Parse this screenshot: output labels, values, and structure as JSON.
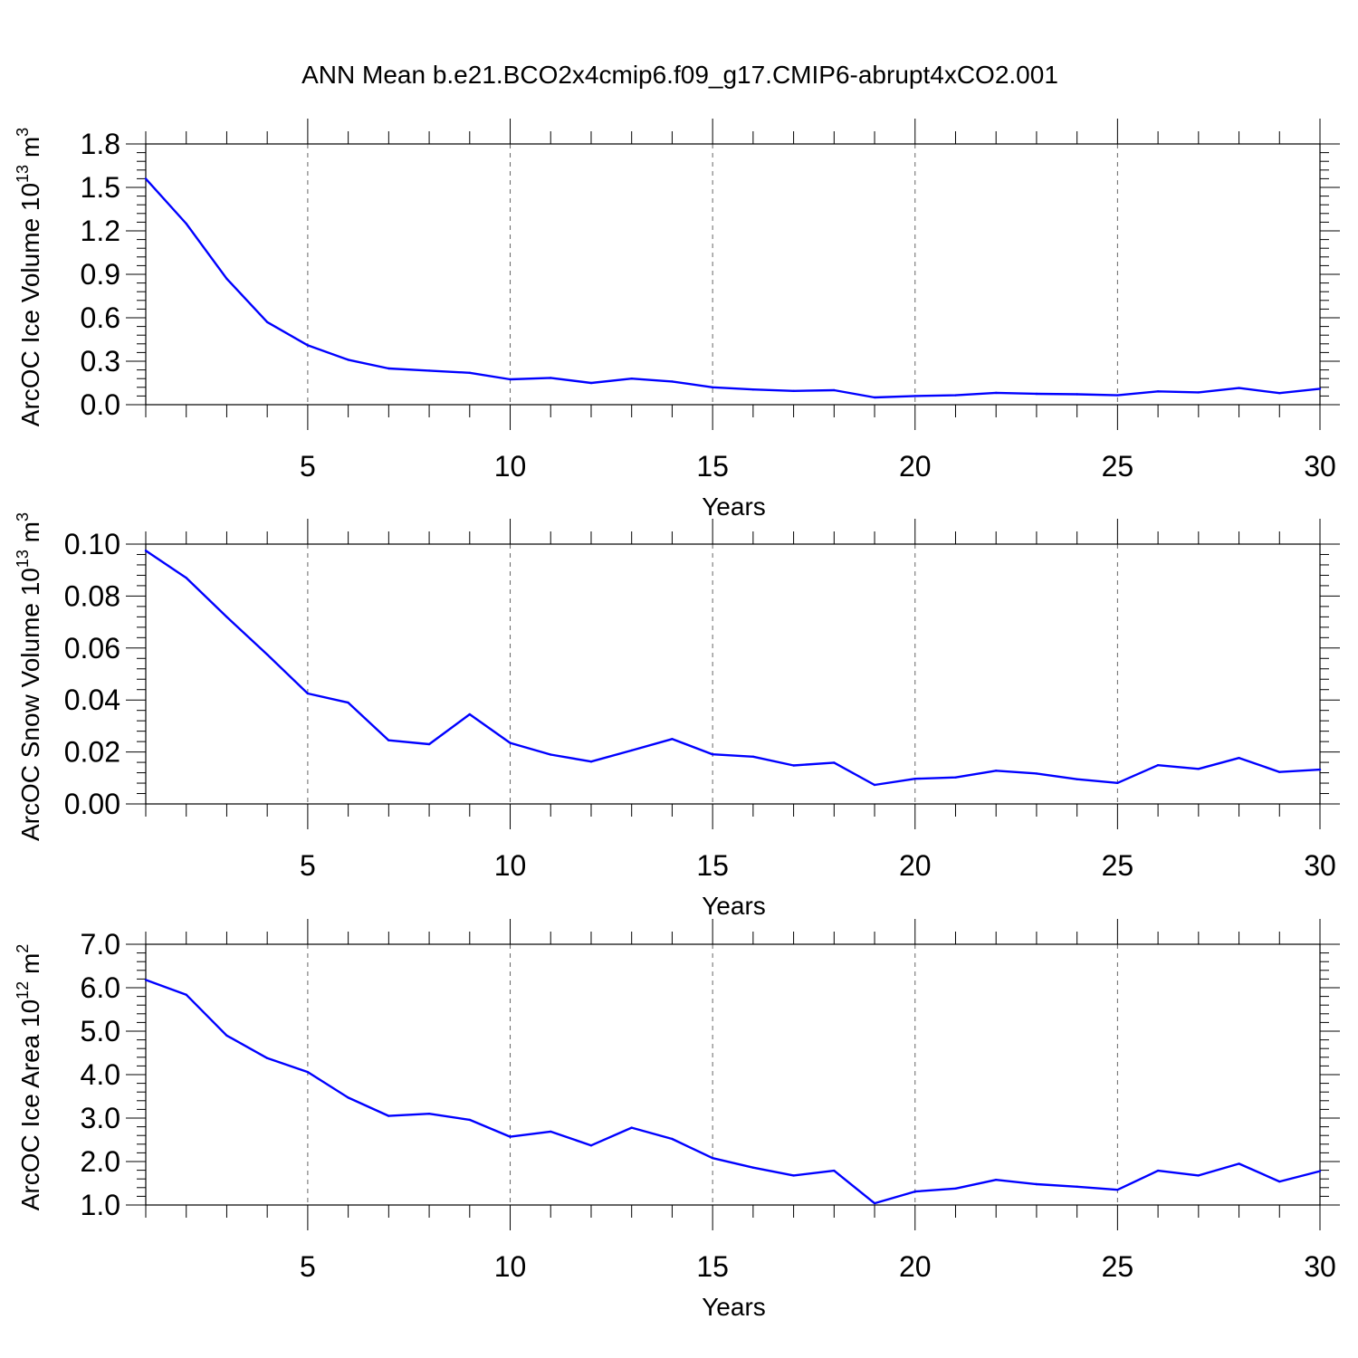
{
  "title": "ANN Mean b.e21.BCO2x4cmip6.f09_g17.CMIP6-abrupt4xCO2.001",
  "colors": {
    "line": "#0000ff",
    "axis": "#000000",
    "grid": "#666666"
  },
  "chart_data": [
    {
      "type": "line",
      "title": "",
      "xlabel": "Years",
      "ylabel": "ArcOC Ice Volume 10",
      "ylabel_exp": "13",
      "ylabel_unit": " m",
      "ylabel_unit_exp": "3",
      "xlim": [
        1,
        30
      ],
      "ylim": [
        0,
        1.8
      ],
      "x_ticks": [
        5,
        10,
        15,
        20,
        25,
        30
      ],
      "y_ticks": [
        0,
        0.3,
        0.6,
        0.9,
        1.2,
        1.5,
        1.8
      ],
      "y_tick_labels": [
        "0.0",
        "0.3",
        "0.6",
        "0.9",
        "1.2",
        "1.5",
        "1.8"
      ],
      "y_minor_step": 0.06,
      "grid": "vertical dashed at major x ticks",
      "x": [
        1,
        2,
        3,
        4,
        5,
        6,
        7,
        8,
        9,
        10,
        11,
        12,
        13,
        14,
        15,
        16,
        17,
        18,
        19,
        20,
        21,
        22,
        23,
        24,
        25,
        26,
        27,
        28,
        29,
        30
      ],
      "y": [
        1.56,
        1.25,
        0.87,
        0.57,
        0.41,
        0.31,
        0.25,
        0.235,
        0.22,
        0.175,
        0.185,
        0.15,
        0.18,
        0.16,
        0.12,
        0.105,
        0.095,
        0.1,
        0.05,
        0.06,
        0.065,
        0.082,
        0.075,
        0.072,
        0.065,
        0.092,
        0.085,
        0.115,
        0.08,
        0.11
      ]
    },
    {
      "type": "line",
      "title": "",
      "xlabel": "Years",
      "ylabel": "ArcOC Snow Volume 10",
      "ylabel_exp": "13",
      "ylabel_unit": " m",
      "ylabel_unit_exp": "3",
      "xlim": [
        1,
        30
      ],
      "ylim": [
        0,
        0.1
      ],
      "x_ticks": [
        5,
        10,
        15,
        20,
        25,
        30
      ],
      "y_ticks": [
        0,
        0.02,
        0.04,
        0.06,
        0.08,
        0.1
      ],
      "y_tick_labels": [
        "0.00",
        "0.02",
        "0.04",
        "0.06",
        "0.08",
        "0.10"
      ],
      "y_minor_step": 0.004,
      "grid": "vertical dashed at major x ticks",
      "x": [
        1,
        2,
        3,
        4,
        5,
        6,
        7,
        8,
        9,
        10,
        11,
        12,
        13,
        14,
        15,
        16,
        17,
        18,
        19,
        20,
        21,
        22,
        23,
        24,
        25,
        26,
        27,
        28,
        29,
        30
      ],
      "y": [
        0.0975,
        0.087,
        0.072,
        0.0575,
        0.0425,
        0.039,
        0.0245,
        0.023,
        0.0345,
        0.0235,
        0.019,
        0.0163,
        0.0206,
        0.025,
        0.0191,
        0.0182,
        0.0148,
        0.0159,
        0.0073,
        0.0097,
        0.0102,
        0.0128,
        0.0117,
        0.0095,
        0.0081,
        0.0149,
        0.0135,
        0.0177,
        0.0123,
        0.0132
      ]
    },
    {
      "type": "line",
      "title": "",
      "xlabel": "Years",
      "ylabel": "ArcOC Ice Area 10",
      "ylabel_exp": "12",
      "ylabel_unit": " m",
      "ylabel_unit_exp": "2",
      "xlim": [
        1,
        30
      ],
      "ylim": [
        1.0,
        7.0
      ],
      "x_ticks": [
        5,
        10,
        15,
        20,
        25,
        30
      ],
      "y_ticks": [
        1,
        2,
        3,
        4,
        5,
        6,
        7
      ],
      "y_tick_labels": [
        "1.0",
        "2.0",
        "3.0",
        "4.0",
        "5.0",
        "6.0",
        "7.0"
      ],
      "y_minor_step": 0.2,
      "grid": "vertical dashed at major x ticks",
      "x": [
        1,
        2,
        3,
        4,
        5,
        6,
        7,
        8,
        9,
        10,
        11,
        12,
        13,
        14,
        15,
        16,
        17,
        18,
        19,
        20,
        21,
        22,
        23,
        24,
        25,
        26,
        27,
        28,
        29,
        30
      ],
      "y": [
        6.18,
        5.84,
        4.9,
        4.38,
        4.06,
        3.47,
        3.05,
        3.1,
        2.96,
        2.57,
        2.69,
        2.37,
        2.78,
        2.52,
        2.08,
        1.86,
        1.68,
        1.79,
        1.04,
        1.31,
        1.38,
        1.58,
        1.48,
        1.42,
        1.35,
        1.79,
        1.68,
        1.95,
        1.54,
        1.78
      ]
    }
  ]
}
